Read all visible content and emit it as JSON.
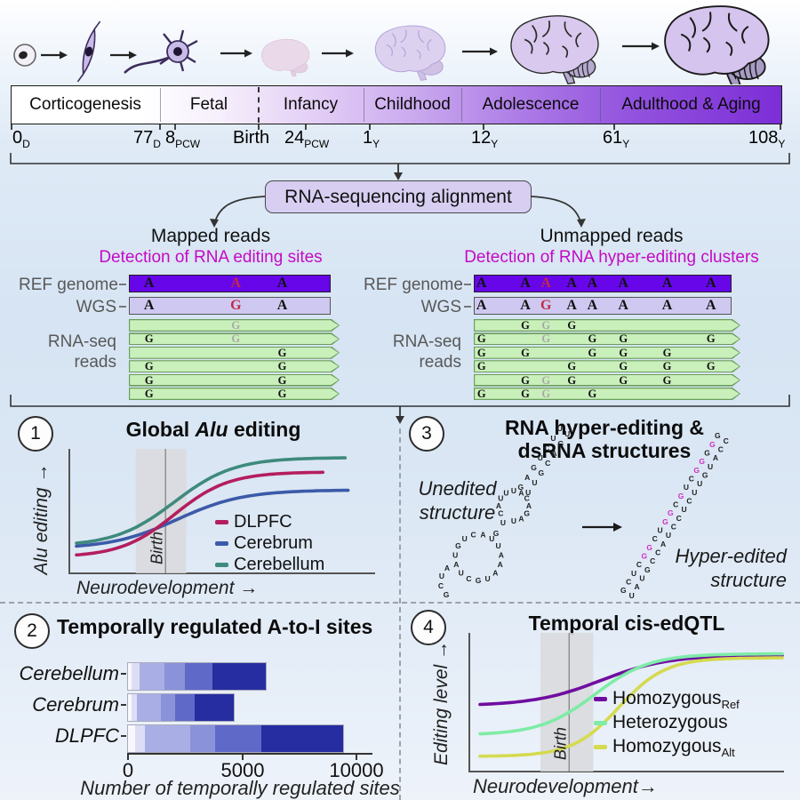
{
  "development_icons": [
    "oocyte",
    "neural-progenitor-cell",
    "neuron",
    "fetal-brain",
    "infant-brain",
    "adolescent-brain",
    "adult-brain"
  ],
  "timeline": {
    "stages": [
      "Corticogenesis",
      "Fetal",
      "Infancy",
      "Childhood",
      "Adolescence",
      "Adulthood & Aging"
    ],
    "ticks": [
      {
        "main": "0",
        "sub": "D"
      },
      {
        "main": "77",
        "sub": "D"
      },
      {
        "main": "8",
        "sub": "PCW"
      },
      {
        "main": "Birth",
        "sub": ""
      },
      {
        "main": "24",
        "sub": "PCW"
      },
      {
        "main": "1",
        "sub": "Y"
      },
      {
        "main": "12",
        "sub": "Y"
      },
      {
        "main": "61",
        "sub": "Y"
      },
      {
        "main": "108",
        "sub": "Y"
      }
    ]
  },
  "alignment": {
    "box_label": "RNA-sequencing alignment",
    "mapped": {
      "title": "Mapped reads",
      "subtitle": "Detection of RNA editing sites"
    },
    "unmapped": {
      "title": "Unmapped reads",
      "subtitle": "Detection of RNA hyper-editing clusters"
    },
    "subtitle_color": "#c40ac4"
  },
  "tracks": {
    "labels": {
      "ref": "REF genome",
      "wgs": "WGS",
      "reads1": "RNA-seq",
      "reads2": "reads"
    },
    "colors": {
      "ref_bar": "#6606e9",
      "wgs_bar": "#cfc9f1",
      "read_fill": "#c9efba",
      "read_border": "#6b9e5d",
      "red": "#c22b45",
      "gray": "#a9a9a9"
    },
    "left": {
      "ref": [
        {
          "ch": "A",
          "f": 0.1
        },
        {
          "ch": "A",
          "f": 0.53,
          "c": "red"
        },
        {
          "ch": "A",
          "f": 0.76
        }
      ],
      "wgs": [
        {
          "ch": "A",
          "f": 0.1
        },
        {
          "ch": "G",
          "f": 0.53,
          "c": "red"
        },
        {
          "ch": "A",
          "f": 0.76
        }
      ],
      "reads": [
        [
          {
            "ch": "G",
            "f": 0.53,
            "c": "gray"
          }
        ],
        [
          {
            "ch": "G",
            "f": 0.1
          },
          {
            "ch": "G",
            "f": 0.53,
            "c": "gray"
          }
        ],
        [
          {
            "ch": "G",
            "f": 0.76
          }
        ],
        [
          {
            "ch": "G",
            "f": 0.1
          },
          {
            "ch": "G",
            "f": 0.76
          }
        ],
        [
          {
            "ch": "G",
            "f": 0.1
          },
          {
            "ch": "G",
            "f": 0.76
          }
        ],
        [
          {
            "ch": "G",
            "f": 0.1
          },
          {
            "ch": "G",
            "f": 0.76
          }
        ]
      ]
    },
    "right": {
      "ref": [
        {
          "ch": "A",
          "f": 0.03
        },
        {
          "ch": "A",
          "f": 0.2
        },
        {
          "ch": "A",
          "f": 0.28,
          "c": "red"
        },
        {
          "ch": "A",
          "f": 0.38
        },
        {
          "ch": "A",
          "f": 0.46
        },
        {
          "ch": "A",
          "f": 0.58
        },
        {
          "ch": "A",
          "f": 0.75
        },
        {
          "ch": "A",
          "f": 0.92
        }
      ],
      "wgs": [
        {
          "ch": "A",
          "f": 0.03
        },
        {
          "ch": "A",
          "f": 0.2
        },
        {
          "ch": "G",
          "f": 0.28,
          "c": "red"
        },
        {
          "ch": "A",
          "f": 0.38
        },
        {
          "ch": "A",
          "f": 0.46
        },
        {
          "ch": "A",
          "f": 0.58
        },
        {
          "ch": "A",
          "f": 0.75
        },
        {
          "ch": "A",
          "f": 0.92
        }
      ],
      "reads": [
        [
          {
            "ch": "G",
            "f": 0.2
          },
          {
            "ch": "G",
            "f": 0.28,
            "c": "gray"
          },
          {
            "ch": "G",
            "f": 0.38
          }
        ],
        [
          {
            "ch": "G",
            "f": 0.03
          },
          {
            "ch": "G",
            "f": 0.28,
            "c": "gray"
          },
          {
            "ch": "G",
            "f": 0.46
          },
          {
            "ch": "G",
            "f": 0.58
          },
          {
            "ch": "G",
            "f": 0.92
          }
        ],
        [
          {
            "ch": "G",
            "f": 0.03
          },
          {
            "ch": "G",
            "f": 0.2
          },
          {
            "ch": "G",
            "f": 0.46
          },
          {
            "ch": "G",
            "f": 0.58
          },
          {
            "ch": "G",
            "f": 0.75
          }
        ],
        [
          {
            "ch": "G",
            "f": 0.03
          },
          {
            "ch": "G",
            "f": 0.38
          },
          {
            "ch": "G",
            "f": 0.58
          },
          {
            "ch": "G",
            "f": 0.75
          },
          {
            "ch": "G",
            "f": 0.92
          }
        ],
        [
          {
            "ch": "G",
            "f": 0.2
          },
          {
            "ch": "G",
            "f": 0.28,
            "c": "gray"
          },
          {
            "ch": "G",
            "f": 0.38
          },
          {
            "ch": "G",
            "f": 0.58
          },
          {
            "ch": "G",
            "f": 0.75
          }
        ],
        [
          {
            "ch": "G",
            "f": 0.03
          },
          {
            "ch": "G",
            "f": 0.2
          },
          {
            "ch": "G",
            "f": 0.28,
            "c": "gray"
          },
          {
            "ch": "G",
            "f": 0.46
          }
        ]
      ]
    }
  },
  "panels": {
    "p1": {
      "number": "1",
      "title_pre": "Global ",
      "title_italic": "Alu",
      "title_post": " editing",
      "ylabel": "Alu editing →",
      "xlabel": "Neurodevelopment →",
      "birth_label": "Birth",
      "legend": [
        {
          "label": "DLPFC",
          "color": "#b41e5f"
        },
        {
          "label": "Cerebrum",
          "color": "#3b5aa9"
        },
        {
          "label": "Cerebellum",
          "color": "#3f8a7d"
        }
      ]
    },
    "p2": {
      "number": "2",
      "title": "Temporally regulated A-to-I sites",
      "xlabel": "Number of temporally regulated sites",
      "xtick_labels": [
        "0",
        "5000",
        "10000"
      ]
    },
    "p3": {
      "number": "3",
      "title_line1": "RNA hyper-editing &",
      "title_line2": "dsRNA structures",
      "left_label_line1": "Unedited",
      "left_label_line2": "structure",
      "right_label_line1": "Hyper-edited",
      "right_label_line2": "structure"
    },
    "p4": {
      "number": "4",
      "title": "Temporal cis-edQTL",
      "ylabel": "Editing level →",
      "xlabel": "Neurodevelopment→",
      "birth_label": "Birth",
      "legend": [
        {
          "label": "Homozygous",
          "sub": "Ref",
          "color": "#6f0da0"
        },
        {
          "label": "Heterozygous",
          "sub": "",
          "color": "#7eeca7"
        },
        {
          "label": "Homozygous",
          "sub": "Alt",
          "color": "#d5da50"
        }
      ]
    }
  },
  "chart_data": [
    {
      "id": "global-alu-editing",
      "type": "line",
      "title": "Global Alu editing",
      "xlabel": "Neurodevelopment",
      "ylabel": "Alu editing",
      "x_axis": "normalized neurodevelopment 0-1",
      "birth_band": [
        0.2,
        0.37
      ],
      "birth_x": 0.3,
      "series": [
        {
          "name": "Cerebrum",
          "color": "#3b5aa9",
          "start_level": 0.19,
          "end_level": 0.68,
          "x_end": 0.915,
          "midpoint": 0.34,
          "steepness": 9
        },
        {
          "name": "DLPFC",
          "color": "#b41e5f",
          "start_level": 0.12,
          "end_level": 0.83,
          "x_end": 0.83,
          "midpoint": 0.33,
          "steepness": 11
        },
        {
          "name": "Cerebellum",
          "color": "#3f8a7d",
          "start_level": 0.21,
          "end_level": 0.95,
          "x_end": 0.905,
          "midpoint": 0.33,
          "steepness": 10
        }
      ],
      "legend_position": "center-right",
      "grid": false
    },
    {
      "id": "temporally-regulated-sites",
      "type": "bar",
      "title": "Temporally regulated A-to-I sites",
      "xlabel": "Number of temporally regulated sites",
      "orientation": "horizontal-stacked",
      "xticks": [
        0,
        5000,
        10000
      ],
      "xlim": [
        0,
        10600
      ],
      "categories": [
        "Cerebellum",
        "Cerebrum",
        "DLPFC"
      ],
      "totals": [
        6000,
        4600,
        9400
      ],
      "segment_colors": [
        "#f7f7fd",
        "#dddef6",
        "#a9afe5",
        "#8a92d9",
        "#5f69c8",
        "#262da0"
      ],
      "series_segments": [
        [
          150,
          350,
          1100,
          900,
          1200,
          2300
        ],
        [
          150,
          250,
          1050,
          600,
          850,
          1700
        ],
        [
          300,
          450,
          1950,
          1100,
          2000,
          3600
        ]
      ]
    },
    {
      "id": "temporal-cis-edqtl",
      "type": "line",
      "title": "Temporal cis-edQTL",
      "xlabel": "Neurodevelopment",
      "ylabel": "Editing level",
      "birth_band": [
        0.2,
        0.375
      ],
      "birth_x": 0.295,
      "series": [
        {
          "name": "HomozygousRef",
          "color": "#6f0da0",
          "start_level": 0.48,
          "end_level": 0.86,
          "x_end": 1.0,
          "midpoint": 0.4,
          "steepness": 9
        },
        {
          "name": "HomozygousAlt",
          "color": "#d5da50",
          "start_level": 0.1,
          "end_level": 0.84,
          "x_end": 1.0,
          "midpoint": 0.46,
          "steepness": 13
        },
        {
          "name": "Heterozygous",
          "color": "#7eeca7",
          "start_level": 0.26,
          "end_level": 0.87,
          "x_end": 1.0,
          "midpoint": 0.38,
          "steepness": 11
        }
      ],
      "legend_position": "center-right",
      "grid": false
    }
  ],
  "rna_structures": {
    "unedited_sequence": "GCUAGUCAUUAAAUGCUAUGUCAUUUACAGAUGUAUGGUCCAUGUUGA",
    "edited_left_strand": [
      "G",
      "C",
      "U",
      "C",
      "G",
      "G",
      "C",
      "U",
      "G",
      "G",
      "C",
      "G",
      "U",
      "C",
      "U",
      "G",
      "G",
      "U",
      "G"
    ],
    "edited_left_magenta": [
      4,
      5,
      8,
      9,
      11,
      14,
      15,
      17
    ],
    "edited_right_strand": "UAUGCCAUCCUCUUGUACC",
    "magenta_color": "#cf2fc4"
  }
}
